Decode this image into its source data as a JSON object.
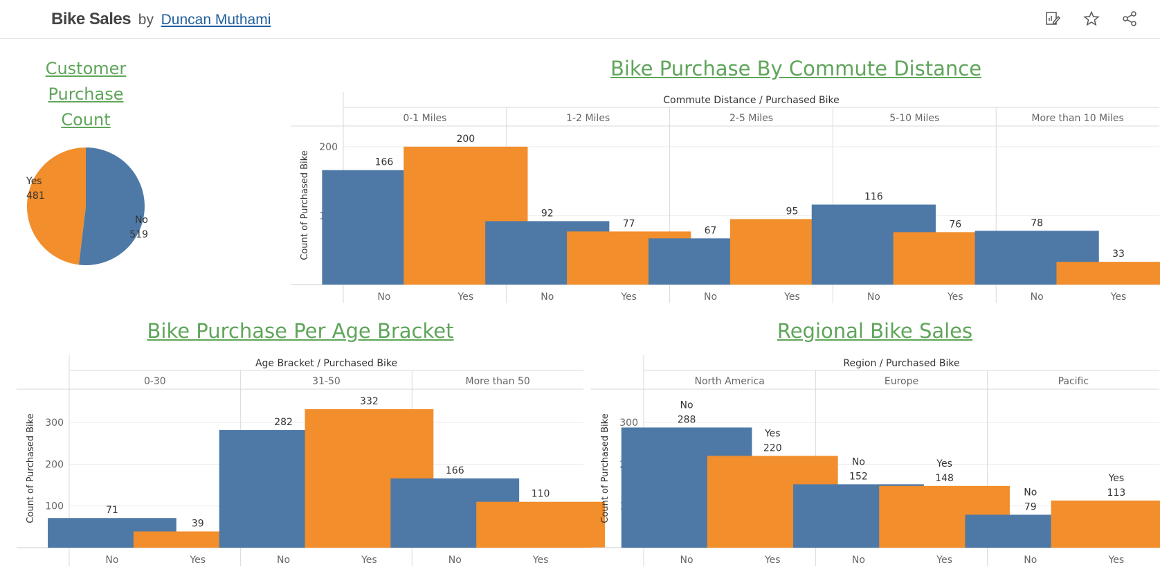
{
  "header": {
    "title": "Bike Sales",
    "by": "by",
    "author": "Duncan Muthami",
    "icons": [
      "edit-icon",
      "star-icon",
      "share-icon"
    ]
  },
  "colors": {
    "no": "#4e79a7",
    "yes": "#f28e2b",
    "title": "#5fa55a"
  },
  "chart_data": [
    {
      "type": "pie",
      "title": "Customer Purchase Count",
      "slices": [
        {
          "label": "No",
          "value": 519
        },
        {
          "label": "Yes",
          "value": 481
        }
      ]
    },
    {
      "type": "bar",
      "title": "Bike Purchase By Commute Distance",
      "header": "Commute Distance / Purchased Bike",
      "ylabel": "Count of Purchased Bike",
      "yticks": [
        0,
        100,
        200
      ],
      "ylim": [
        0,
        230
      ],
      "groups": [
        {
          "name": "0-1 Miles",
          "bars": [
            {
              "label": "No",
              "value": 166
            },
            {
              "label": "Yes",
              "value": 200
            }
          ]
        },
        {
          "name": "1-2 Miles",
          "bars": [
            {
              "label": "No",
              "value": 92
            },
            {
              "label": "Yes",
              "value": 77
            }
          ]
        },
        {
          "name": "2-5 Miles",
          "bars": [
            {
              "label": "No",
              "value": 67
            },
            {
              "label": "Yes",
              "value": 95
            }
          ]
        },
        {
          "name": "5-10 Miles",
          "bars": [
            {
              "label": "No",
              "value": 116
            },
            {
              "label": "Yes",
              "value": 76
            }
          ]
        },
        {
          "name": "More than 10 Miles",
          "bars": [
            {
              "label": "No",
              "value": 78
            },
            {
              "label": "Yes",
              "value": 33
            }
          ]
        }
      ]
    },
    {
      "type": "bar",
      "title": "Bike Purchase Per Age Bracket",
      "header": "Age Bracket / Purchased Bike",
      "ylabel": "Count of Purchased Bike",
      "yticks": [
        0,
        100,
        200,
        300
      ],
      "ylim": [
        0,
        380
      ],
      "groups": [
        {
          "name": "0-30",
          "bars": [
            {
              "label": "No",
              "value": 71
            },
            {
              "label": "Yes",
              "value": 39
            }
          ]
        },
        {
          "name": "31-50",
          "bars": [
            {
              "label": "No",
              "value": 282
            },
            {
              "label": "Yes",
              "value": 332
            }
          ]
        },
        {
          "name": "More than 50",
          "bars": [
            {
              "label": "No",
              "value": 166
            },
            {
              "label": "Yes",
              "value": 110
            }
          ]
        }
      ]
    },
    {
      "type": "bar",
      "title": "Regional Bike Sales",
      "header": "Region / Purchased Bike",
      "ylabel": "Count of Purchased Bike",
      "yticks": [
        0,
        100,
        200,
        300
      ],
      "ylim": [
        0,
        380
      ],
      "label_with_category": true,
      "groups": [
        {
          "name": "North America",
          "bars": [
            {
              "label": "No",
              "value": 288
            },
            {
              "label": "Yes",
              "value": 220
            }
          ]
        },
        {
          "name": "Europe",
          "bars": [
            {
              "label": "No",
              "value": 152
            },
            {
              "label": "Yes",
              "value": 148
            }
          ]
        },
        {
          "name": "Pacific",
          "bars": [
            {
              "label": "No",
              "value": 79
            },
            {
              "label": "Yes",
              "value": 113
            }
          ]
        }
      ]
    }
  ]
}
